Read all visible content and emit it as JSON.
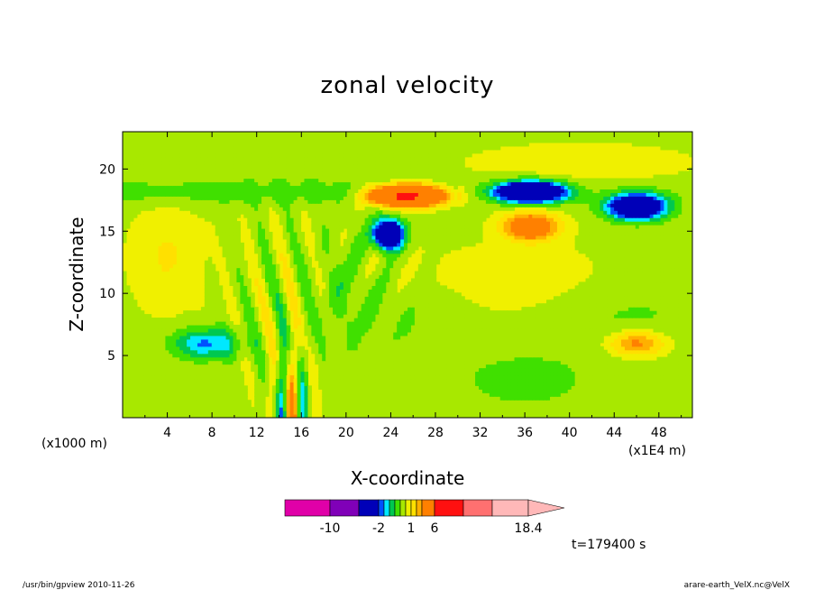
{
  "chart_data": {
    "type": "heatmap",
    "title": "zonal velocity",
    "xlabel": "X-coordinate",
    "ylabel": "Z-coordinate",
    "x_unit_left": "(x1000 m)",
    "x_unit_right": "(x1E4 m)",
    "xlim": [
      0,
      51
    ],
    "ylim": [
      0,
      23
    ],
    "x_ticks": [
      "4",
      "8",
      "12",
      "16",
      "20",
      "24",
      "28",
      "32",
      "36",
      "40",
      "44",
      "48"
    ],
    "y_ticks": [
      "5",
      "10",
      "15",
      "20"
    ],
    "colorbar": {
      "levels": [
        -14,
        -10,
        -6,
        -2,
        -1.5,
        -1,
        -0.5,
        0,
        0.5,
        1,
        1.5,
        2,
        6,
        10,
        14,
        18.4
      ],
      "labels": [
        "-10",
        "-2",
        "1",
        "6",
        "18.4"
      ],
      "colors": [
        "#e000a8",
        "#8000b8",
        "#0000b8",
        "#0050ff",
        "#00e8ff",
        "#00c850",
        "#40e000",
        "#a8e800",
        "#f0f000",
        "#ffe000",
        "#ffb000",
        "#ff8000",
        "#ff1010",
        "#ff7070",
        "#ffb8b8"
      ]
    },
    "features": [
      {
        "value": 7,
        "x": 25.5,
        "z": 17.9,
        "sx": 3.2,
        "sz": 0.8
      },
      {
        "value": 3,
        "x": 36.5,
        "z": 15.4,
        "sx": 2.4,
        "sz": 1.1
      },
      {
        "value": 2,
        "x": 46,
        "z": 6,
        "sx": 2.5,
        "sz": 1
      },
      {
        "value": -6,
        "x": 36.5,
        "z": 18.2,
        "sx": 3,
        "sz": 0.8
      },
      {
        "value": -5,
        "x": 46,
        "z": 17,
        "sx": 2.5,
        "sz": 1
      },
      {
        "value": -6,
        "x": 23.8,
        "z": 14.8,
        "sx": 1.2,
        "sz": 1.1
      },
      {
        "value": -2,
        "x": 7.5,
        "z": 6,
        "sx": 3,
        "sz": 1.2
      }
    ],
    "time_label": "t=179400 s"
  },
  "footer": {
    "left": "/usr/bin/gpview  2010-11-26",
    "right": "arare-earth_VelX.nc@VelX"
  }
}
